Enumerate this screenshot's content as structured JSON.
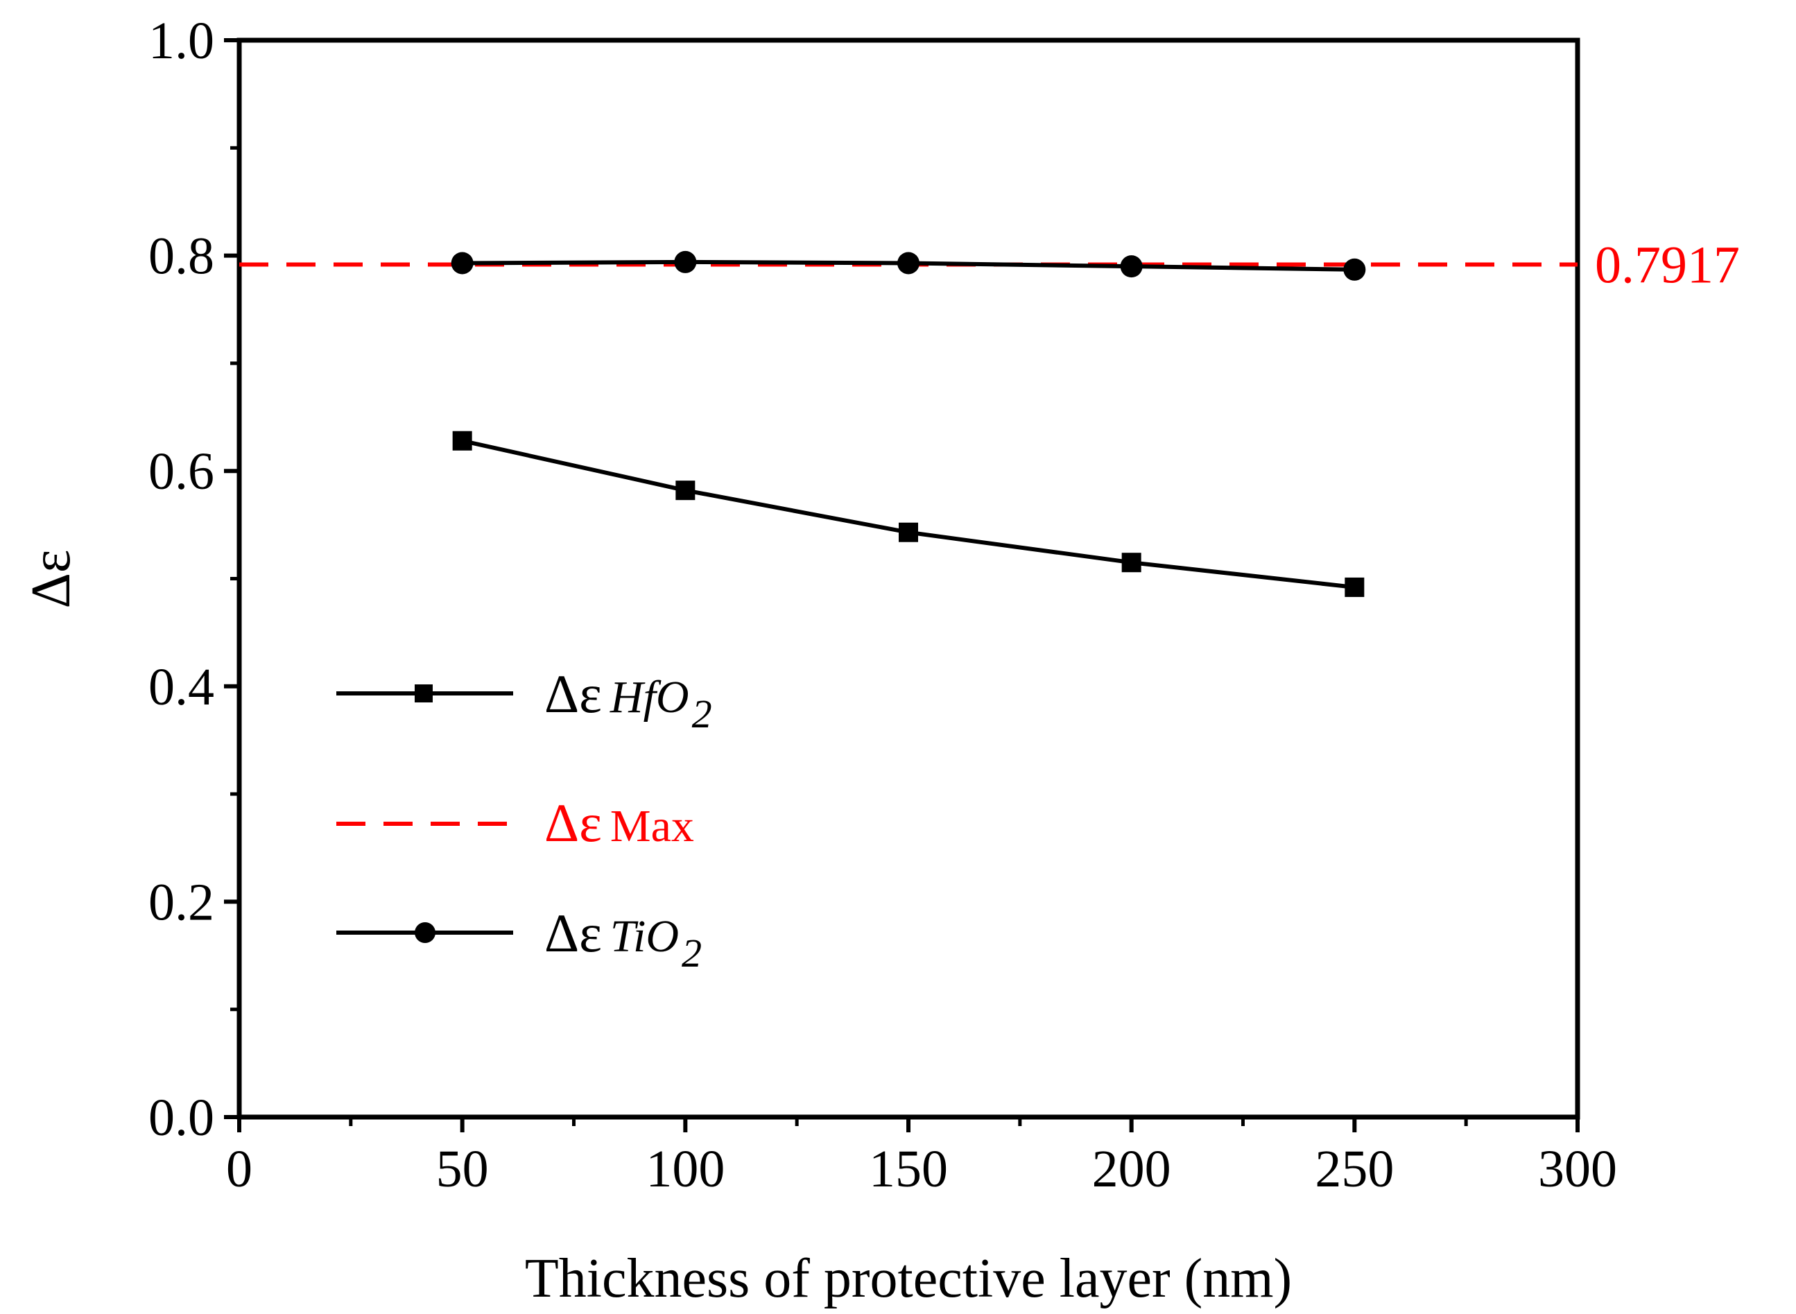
{
  "chart_data": {
    "type": "line",
    "title": "",
    "xlabel": "Thickness of protective layer (nm)",
    "ylabel": "Δε",
    "xlim": [
      0,
      300
    ],
    "ylim": [
      0.0,
      1.0
    ],
    "xticks": [
      "0",
      "50",
      "100",
      "150",
      "200",
      "250",
      "300"
    ],
    "yticks": [
      "0.0",
      "0.2",
      "0.4",
      "0.6",
      "0.8",
      "1.0"
    ],
    "x": [
      50,
      100,
      150,
      200,
      250
    ],
    "series": [
      {
        "name": "Δε HfO2",
        "legend_symbol": "Δε",
        "legend_sub": "HfO",
        "legend_sub_num": "2",
        "marker": "square",
        "color": "#000000",
        "values": [
          0.628,
          0.582,
          0.543,
          0.515,
          0.492
        ]
      },
      {
        "name": "Δε TiO2",
        "legend_symbol": "Δε",
        "legend_sub": "TiO",
        "legend_sub_num": "2",
        "marker": "circle",
        "color": "#000000",
        "values": [
          0.793,
          0.794,
          0.793,
          0.79,
          0.787
        ]
      }
    ],
    "reference_line": {
      "name": "Δε Max",
      "legend_symbol": "Δε",
      "legend_sub": "Max",
      "value": 0.7917,
      "label": "0.7917",
      "color": "#ff0000",
      "style": "dashed"
    },
    "legend_position": "bottom-left"
  }
}
